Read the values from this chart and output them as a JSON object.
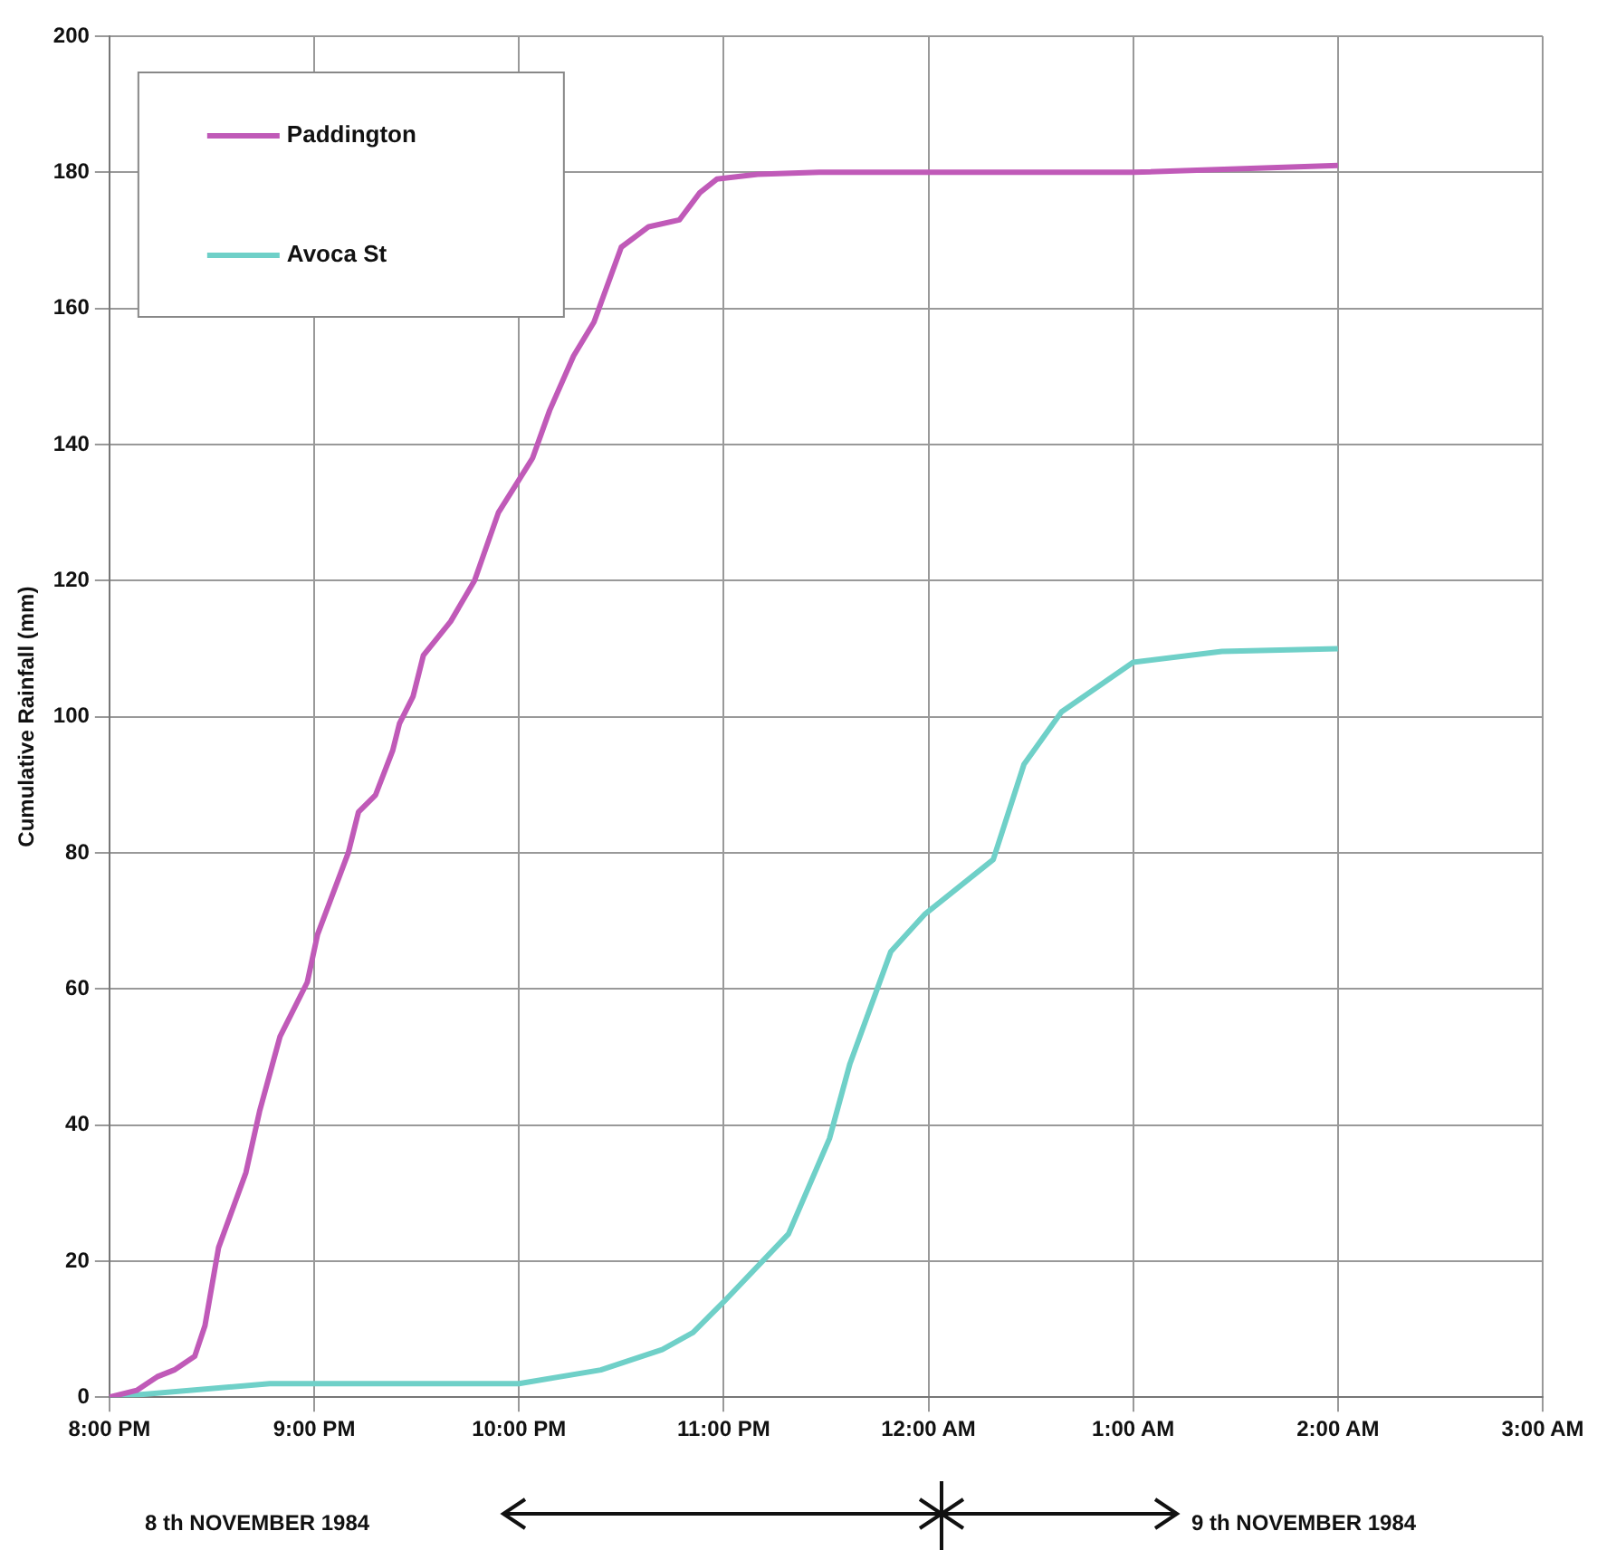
{
  "chart_data": {
    "type": "line",
    "ylabel": "Cumulative Rainfall (mm)",
    "xlim": [
      "1984-11-08T20:00",
      "1984-11-09T03:00"
    ],
    "xticks": [
      {
        "value": "1984-11-08T20:00",
        "label": "8:00 PM"
      },
      {
        "value": "1984-11-08T21:00",
        "label": "9:00 PM"
      },
      {
        "value": "1984-11-08T22:00",
        "label": "10:00 PM"
      },
      {
        "value": "1984-11-08T23:00",
        "label": "11:00 PM"
      },
      {
        "value": "1984-11-09T00:00",
        "label": "12:00 AM"
      },
      {
        "value": "1984-11-09T01:00",
        "label": "1:00 AM"
      },
      {
        "value": "1984-11-09T02:00",
        "label": "2:00 AM"
      },
      {
        "value": "1984-11-09T03:00",
        "label": "3:00 AM"
      }
    ],
    "ylim": [
      0,
      200
    ],
    "yticks": [
      0,
      20,
      40,
      60,
      80,
      100,
      120,
      140,
      160,
      180,
      200
    ],
    "grid": true,
    "legend": "top left",
    "marker": "none",
    "line_style": "solid",
    "series": [
      {
        "name": "Paddington",
        "color": "#c05ab8",
        "x": [
          "1984-11-08T20:00",
          "1984-11-08T20:08",
          "1984-11-08T20:14",
          "1984-11-08T20:19",
          "1984-11-08T20:25",
          "1984-11-08T20:28",
          "1984-11-08T20:32",
          "1984-11-08T20:40",
          "1984-11-08T20:44",
          "1984-11-08T20:50",
          "1984-11-08T20:58",
          "1984-11-08T21:01",
          "1984-11-08T21:10",
          "1984-11-08T21:13",
          "1984-11-08T21:18",
          "1984-11-08T21:23",
          "1984-11-08T21:25",
          "1984-11-08T21:29",
          "1984-11-08T21:32",
          "1984-11-08T21:40",
          "1984-11-08T21:47",
          "1984-11-08T21:54",
          "1984-11-08T21:59",
          "1984-11-08T22:04",
          "1984-11-08T22:09",
          "1984-11-08T22:16",
          "1984-11-08T22:22",
          "1984-11-08T22:30",
          "1984-11-08T22:38",
          "1984-11-08T22:47",
          "1984-11-08T22:53",
          "1984-11-08T22:58",
          "1984-11-08T23:10",
          "1984-11-08T23:28",
          "1984-11-09T00:00",
          "1984-11-09T01:00",
          "1984-11-09T02:00"
        ],
        "values": [
          0,
          1,
          3,
          4,
          6,
          10.5,
          22,
          33,
          42,
          53,
          61,
          68,
          80,
          86,
          88.5,
          95,
          99,
          103,
          109,
          114,
          120,
          130,
          134,
          138,
          145,
          153,
          158,
          169,
          172,
          173,
          177,
          179,
          179.7,
          180,
          180,
          180,
          181
        ]
      },
      {
        "name": "Avoca St",
        "color": "#6fd0c8",
        "x": [
          "1984-11-08T20:00",
          "1984-11-08T20:47",
          "1984-11-08T22:00",
          "1984-11-08T22:24",
          "1984-11-08T22:42",
          "1984-11-08T22:51",
          "1984-11-08T23:00",
          "1984-11-08T23:19",
          "1984-11-08T23:31",
          "1984-11-08T23:37",
          "1984-11-08T23:49",
          "1984-11-08T23:59",
          "1984-11-09T00:19",
          "1984-11-09T00:28",
          "1984-11-09T00:39",
          "1984-11-09T01:00",
          "1984-11-09T01:26",
          "1984-11-09T02:00"
        ],
        "values": [
          0,
          2,
          2,
          4,
          7,
          9.5,
          14,
          24,
          38,
          49,
          65.5,
          71,
          79,
          93,
          100.7,
          108,
          109.6,
          110
        ]
      }
    ],
    "annotations": [
      "8 th NOVEMBER 1984",
      "9 th NOVEMBER 1984"
    ]
  }
}
